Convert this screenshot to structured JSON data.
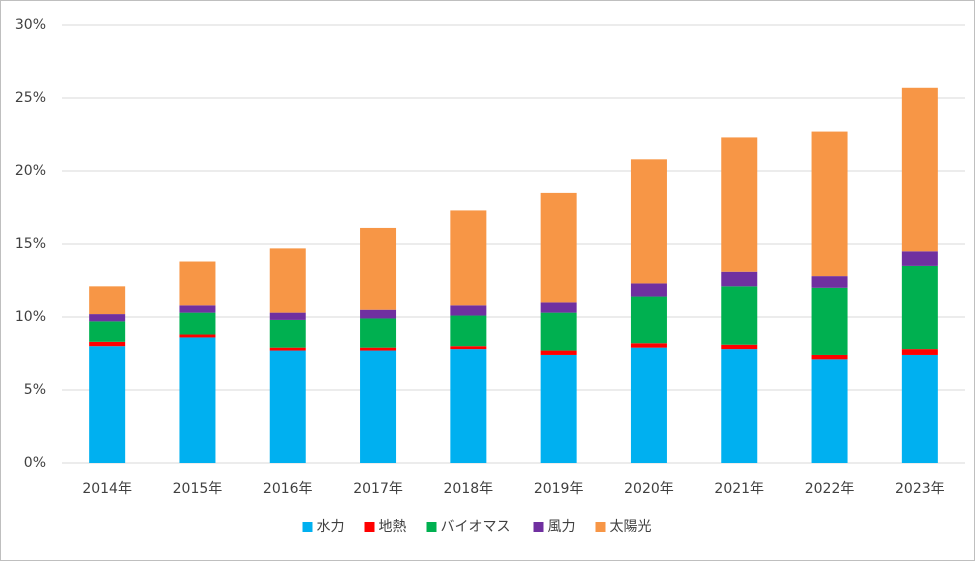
{
  "chart_data": {
    "type": "stacked_bar",
    "categories": [
      "2014年",
      "2015年",
      "2016年",
      "2017年",
      "2018年",
      "2019年",
      "2020年",
      "2021年",
      "2022年",
      "2023年"
    ],
    "series": [
      {
        "name": "水力",
        "color": "#00b0f0",
        "values": [
          8.0,
          8.6,
          7.7,
          7.7,
          7.8,
          7.4,
          7.9,
          7.8,
          7.1,
          7.4
        ]
      },
      {
        "name": "地熱",
        "color": "#ff0000",
        "values": [
          0.3,
          0.2,
          0.2,
          0.2,
          0.2,
          0.3,
          0.3,
          0.3,
          0.3,
          0.4
        ]
      },
      {
        "name": "バイオマス",
        "color": "#00b050",
        "values": [
          1.4,
          1.5,
          1.9,
          2.0,
          2.1,
          2.6,
          3.2,
          4.0,
          4.6,
          5.7
        ]
      },
      {
        "name": "風力",
        "color": "#7030a0",
        "values": [
          0.5,
          0.5,
          0.5,
          0.6,
          0.7,
          0.7,
          0.9,
          1.0,
          0.8,
          1.0
        ]
      },
      {
        "name": "太陽光",
        "color": "#f79646",
        "values": [
          1.9,
          3.0,
          4.4,
          5.6,
          6.5,
          7.5,
          8.5,
          9.2,
          9.9,
          11.2
        ]
      }
    ],
    "ylim": [
      0,
      30
    ],
    "yticks": [
      {
        "value": 0,
        "label": "0%"
      },
      {
        "value": 5,
        "label": "5%"
      },
      {
        "value": 10,
        "label": "10%"
      },
      {
        "value": 15,
        "label": "15%"
      },
      {
        "value": 20,
        "label": "20%"
      },
      {
        "value": 25,
        "label": "25%"
      },
      {
        "value": 30,
        "label": "30%"
      }
    ],
    "grid": true,
    "legend": "bottom"
  }
}
